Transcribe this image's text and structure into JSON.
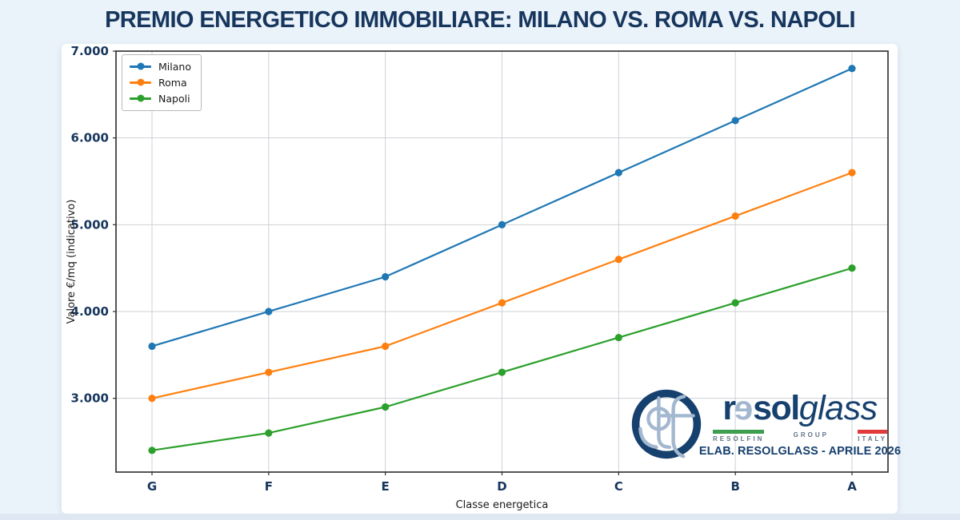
{
  "title": "PREMIO ENERGETICO IMMOBILIARE: MILANO VS. ROMA VS. NAPOLI",
  "colors": {
    "navy": "#17365d",
    "bg": "#eaf2fa",
    "card": "#ffffff",
    "strip": "#dfe8f2",
    "grid": "#cdd1d6",
    "axis": "#2b2b2b",
    "logo_navy": "#16406e",
    "logo_lightblue": "#a3b8d0",
    "flag_green": "#3d9e4f",
    "flag_red": "#e03a3a",
    "caption_grey": "#5f7388"
  },
  "chart_data": {
    "type": "line",
    "title": "PREMIO ENERGETICO IMMOBILIARE: MILANO VS. ROMA VS. NAPOLI",
    "categories": [
      "G",
      "F",
      "E",
      "D",
      "C",
      "B",
      "A"
    ],
    "series": [
      {
        "name": "Milano",
        "color": "#1f77b4",
        "values": [
          3600,
          4000,
          4400,
          5000,
          5600,
          6200,
          6800
        ]
      },
      {
        "name": "Roma",
        "color": "#ff7f0e",
        "values": [
          3000,
          3300,
          3600,
          4100,
          4600,
          5100,
          5600
        ]
      },
      {
        "name": "Napoli",
        "color": "#2ca02c",
        "values": [
          2400,
          2600,
          2900,
          3300,
          3700,
          4100,
          4500
        ]
      }
    ],
    "xlabel": "Classe energetica",
    "ylabel": "Valore €/mq (indicativo)",
    "ylim": [
      2150,
      7000
    ],
    "yticks": [
      {
        "value": 3000,
        "label": "3.000"
      },
      {
        "value": 4000,
        "label": "4.000"
      },
      {
        "value": 5000,
        "label": "5.000"
      },
      {
        "value": 6000,
        "label": "6.000"
      },
      {
        "value": 7000,
        "label": "7.000"
      }
    ],
    "grid": true,
    "legend_position": "upper left"
  },
  "logo": {
    "wordmark_r": "r",
    "wordmark_e": "e",
    "wordmark_sol": "sol",
    "wordmark_glass": "glass",
    "caption_left": "RESOLFIN",
    "caption_mid": "GROUP",
    "caption_right": "ITALY",
    "elab_line": "ELAB. RESOLGLASS - APRILE 2026"
  }
}
